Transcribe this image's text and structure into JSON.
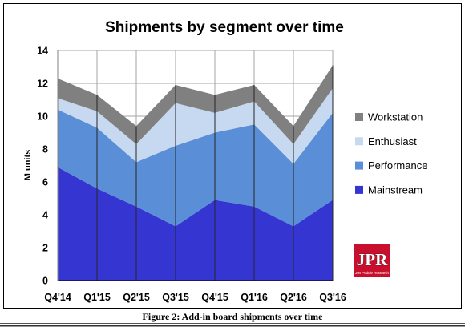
{
  "chart_data": {
    "type": "area",
    "stacked": true,
    "title": "Shipments by segment over time",
    "ylabel": "M units",
    "categories": [
      "Q4'14",
      "Q1'15",
      "Q2'15",
      "Q3'15",
      "Q4'15",
      "Q1'16",
      "Q2'16",
      "Q3'16"
    ],
    "ylim": [
      0,
      14
    ],
    "yticks": [
      0,
      2,
      4,
      6,
      8,
      10,
      12,
      14
    ],
    "grid": true,
    "legend": "right",
    "series": [
      {
        "name": "Mainstream",
        "color": "#3535d2",
        "values": [
          6.9,
          5.6,
          4.5,
          3.3,
          4.9,
          4.5,
          3.3,
          4.9
        ]
      },
      {
        "name": "Performance",
        "color": "#5a8ed6",
        "values": [
          3.5,
          3.7,
          2.7,
          4.9,
          4.1,
          5.0,
          3.8,
          5.3
        ]
      },
      {
        "name": "Enthusiast",
        "color": "#c6d9f1",
        "values": [
          0.7,
          1.0,
          1.1,
          2.6,
          1.2,
          1.4,
          1.2,
          1.5
        ]
      },
      {
        "name": "Workstation",
        "color": "#808080",
        "values": [
          1.2,
          1.0,
          1.1,
          1.1,
          1.1,
          1.0,
          1.1,
          1.4
        ]
      }
    ]
  },
  "caption": "Figure 2: Add-in board shipments over time",
  "logo": {
    "text": "JPR",
    "subtext": "Jon Peddie Research",
    "color": "#c8102e"
  }
}
